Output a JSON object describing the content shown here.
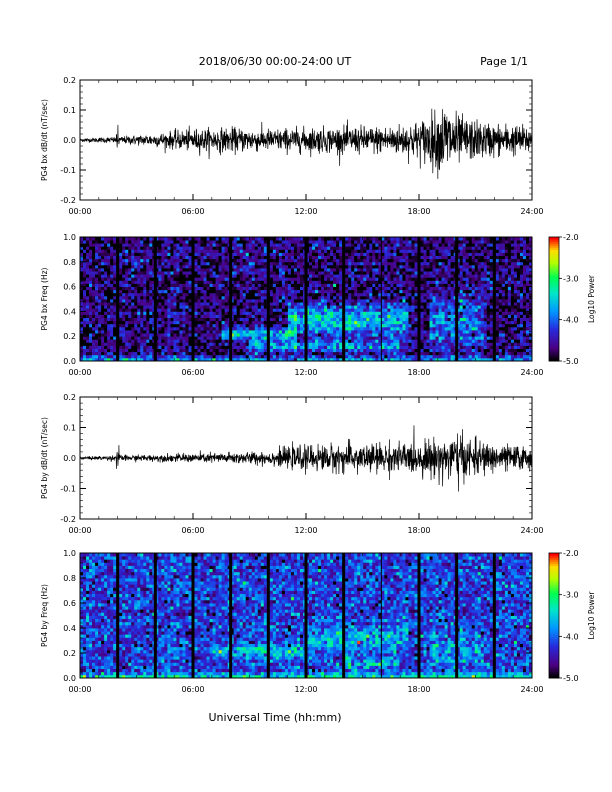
{
  "header": {
    "title": "2018/06/30  00:00-24:00 UT",
    "page": "Page 1/1"
  },
  "footer": {
    "xlabel": "Universal Time (hh:mm)"
  },
  "colors": {
    "trace": "#000000",
    "background": "#ffffff",
    "colorbar": [
      "#000000",
      "#4b0082",
      "#0000ff",
      "#00bfff",
      "#00ff7f",
      "#7cfc00",
      "#ffff00",
      "#ff8c00",
      "#ff0000"
    ]
  },
  "chart_data": [
    {
      "type": "line",
      "ylabel": "PG4 bx dB/dt (nT/sec)",
      "xlim": [
        0,
        24
      ],
      "ylim": [
        -0.2,
        0.2
      ],
      "xticks": [
        "00:00",
        "06:00",
        "12:00",
        "18:00",
        "24:00"
      ],
      "yticks": [
        "-0.2",
        "-0.1",
        "0.0",
        "0.1",
        "0.2"
      ],
      "envelope": {
        "hours": [
          0,
          2,
          4,
          6,
          8,
          10,
          12,
          14,
          16,
          17,
          18,
          19,
          19.5,
          20,
          21,
          22,
          24
        ],
        "amplitude": [
          0.003,
          0.006,
          0.012,
          0.02,
          0.022,
          0.02,
          0.022,
          0.024,
          0.025,
          0.028,
          0.035,
          0.055,
          0.07,
          0.045,
          0.035,
          0.03,
          0.025
        ]
      }
    },
    {
      "type": "heatmap",
      "ylabel": "PG4 bx Freq (Hz)",
      "colorbar_label": "Log10 Power",
      "colorbar_ticks": [
        "-2.0",
        "-3.0",
        "-4.0",
        "-5.0"
      ],
      "zlim": [
        -5.0,
        -2.0
      ],
      "xlim": [
        0,
        24
      ],
      "ylim": [
        0.0,
        1.0
      ],
      "xticks": [
        "00:00",
        "06:00",
        "12:00",
        "18:00",
        "24:00"
      ],
      "yticks": [
        "0.0",
        "0.2",
        "0.4",
        "0.6",
        "0.8",
        "1.0"
      ],
      "data_gaps_hours": [
        2.0,
        4.0,
        6.0,
        8.0,
        10.0,
        12.0,
        14.0,
        18.0,
        20.0,
        22.0
      ],
      "thin_gaps_hours": [
        16.0
      ],
      "background_level": -4.7,
      "features": [
        {
          "name": "Pc1 band",
          "t_start": 7.5,
          "t_end": 11.5,
          "f_center": 0.22,
          "f_width": 0.05,
          "level": -3.3
        },
        {
          "name": "Pc1 band upper",
          "t_start": 11.0,
          "t_end": 17.5,
          "f_center": 0.33,
          "f_width": 0.12,
          "level": -3.3
        },
        {
          "name": "low band",
          "t_start": 9.0,
          "t_end": 17.0,
          "f_center": 0.12,
          "f_width": 0.04,
          "level": -3.6
        },
        {
          "name": "late bursts",
          "t_start": 18.5,
          "t_end": 21.5,
          "f_center": 0.3,
          "f_width": 0.2,
          "level": -3.8
        }
      ]
    },
    {
      "type": "line",
      "ylabel": "PG4 by dB/dt (nT/sec)",
      "xlim": [
        0,
        24
      ],
      "ylim": [
        -0.2,
        0.2
      ],
      "xticks": [
        "00:00",
        "06:00",
        "12:00",
        "18:00",
        "24:00"
      ],
      "yticks": [
        "-0.2",
        "-0.1",
        "0.0",
        "0.1",
        "0.2"
      ],
      "envelope": {
        "hours": [
          0,
          2,
          4,
          6,
          8,
          10,
          11,
          12,
          14,
          16,
          18,
          19,
          20,
          21,
          22,
          24
        ],
        "amplitude": [
          0.002,
          0.005,
          0.006,
          0.008,
          0.01,
          0.012,
          0.018,
          0.022,
          0.025,
          0.026,
          0.028,
          0.035,
          0.045,
          0.03,
          0.025,
          0.02
        ]
      }
    },
    {
      "type": "heatmap",
      "ylabel": "PG4 by Freq (Hz)",
      "colorbar_label": "Log10 Power",
      "colorbar_ticks": [
        "-2.0",
        "-3.0",
        "-4.0",
        "-5.0"
      ],
      "zlim": [
        -5.0,
        -2.0
      ],
      "xlim": [
        0,
        24
      ],
      "ylim": [
        0.0,
        1.0
      ],
      "xticks": [
        "00:00",
        "06:00",
        "12:00",
        "18:00",
        "24:00"
      ],
      "yticks": [
        "0.0",
        "0.2",
        "0.4",
        "0.6",
        "0.8",
        "1.0"
      ],
      "data_gaps_hours": [
        2.0,
        4.0,
        6.0,
        8.0,
        10.0,
        12.0,
        14.0,
        18.0,
        20.0,
        22.0
      ],
      "thin_gaps_hours": [
        16.0
      ],
      "background_level": -4.2,
      "features": [
        {
          "name": "Pc1 band",
          "t_start": 7.0,
          "t_end": 12.0,
          "f_center": 0.22,
          "f_width": 0.05,
          "level": -3.4
        },
        {
          "name": "Pc1 band upper",
          "t_start": 12.0,
          "t_end": 17.5,
          "f_center": 0.3,
          "f_width": 0.1,
          "level": -3.5
        },
        {
          "name": "low band",
          "t_start": 14.0,
          "t_end": 17.0,
          "f_center": 0.12,
          "f_width": 0.04,
          "level": -3.5
        },
        {
          "name": "late bursts",
          "t_start": 18.5,
          "t_end": 21.5,
          "f_center": 0.2,
          "f_width": 0.15,
          "level": -3.7
        }
      ]
    }
  ]
}
